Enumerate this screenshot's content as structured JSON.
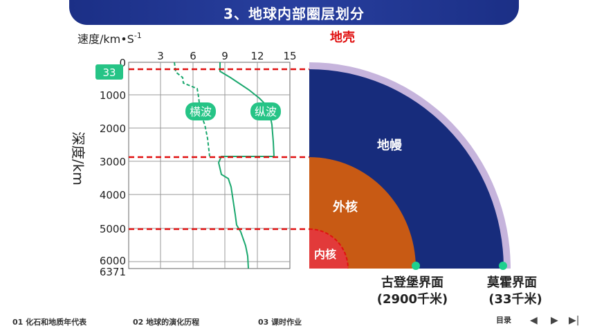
{
  "title": "3、地球内部圈层划分",
  "chart": {
    "y_axis_label": "速度/km•S",
    "y_axis_sup": "-1",
    "depth_axis_label": "深度/km",
    "x_ticks": [
      "3",
      "6",
      "9",
      "12",
      "15"
    ],
    "depth_ticks": [
      "0",
      "1000",
      "2000",
      "3000",
      "4000",
      "5000",
      "6000"
    ],
    "bottom_depth": "6371",
    "boundary_33_label": "33",
    "s_wave_label": "横波",
    "p_wave_label": "纵波"
  },
  "diagram": {
    "crust_label": "地壳",
    "mantle_label": "地幔",
    "outer_core_label": "外核",
    "inner_core_label": "内核",
    "gutenberg_label": "古登堡界面",
    "gutenberg_depth": "(2900千米)",
    "moho_label": "莫霍界面",
    "moho_depth": "(33千米)"
  },
  "colors": {
    "banner": "#1b2f86",
    "crust": "#c6b4dc",
    "mantle": "#172c7c",
    "outer_core": "#c85a14",
    "inner_core": "#e23a3a",
    "wave": "#1aa86e",
    "badge": "#26c486",
    "dash_red": "#e01010",
    "boundary_dot": "#1fd08e"
  },
  "nav": {
    "item1": "01 化石和地质年代表",
    "item2": "02 地球的演化历程",
    "item3": "03 课时作业",
    "toc": "目录",
    "prev": "◀",
    "next": "▶",
    "last": "▶|"
  }
}
